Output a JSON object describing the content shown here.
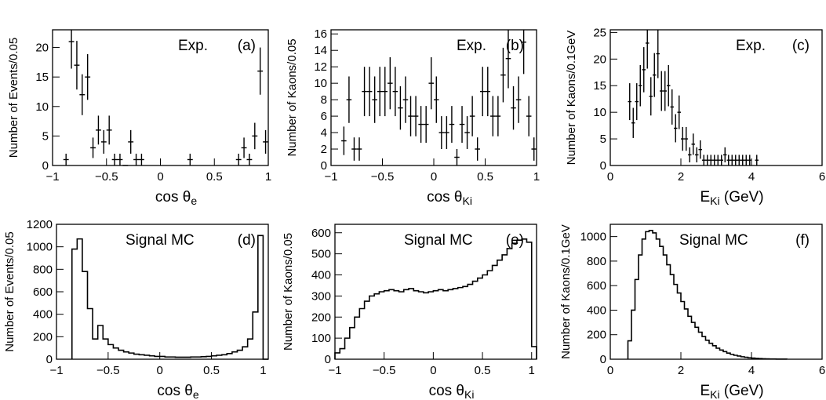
{
  "chart_data": [
    {
      "id": "a",
      "type": "scatter",
      "error_bars": true,
      "annotation": "Exp.",
      "panel_label": "(a)",
      "ylabel": "Number of Events/0.05",
      "xlabel_main": "cos θ",
      "xlabel_sub": "e",
      "xlim": [
        -1,
        1
      ],
      "ylim": [
        0,
        23
      ],
      "xticks": [
        -1,
        -0.5,
        0,
        0.5,
        1
      ],
      "xtick_labels": [
        "−1",
        "−0.5",
        "0",
        "0.5",
        "1"
      ],
      "yticks": [
        0,
        5,
        10,
        15,
        20
      ],
      "ytick_labels": [
        "0",
        "5",
        "10",
        "15",
        "20"
      ],
      "x": [
        -0.875,
        -0.825,
        -0.775,
        -0.725,
        -0.675,
        -0.625,
        -0.575,
        -0.525,
        -0.475,
        -0.425,
        -0.375,
        -0.325,
        -0.275,
        -0.225,
        -0.175,
        0.275,
        0.725,
        0.775,
        0.825,
        0.875,
        0.925,
        0.975
      ],
      "y": [
        1,
        21,
        17,
        12,
        15,
        3,
        6,
        4,
        6,
        1,
        1,
        0,
        4,
        1,
        1,
        1,
        1,
        3,
        1,
        5,
        16,
        4
      ]
    },
    {
      "id": "b",
      "type": "scatter",
      "error_bars": true,
      "annotation": "Exp.",
      "panel_label": "(b)",
      "ylabel": "Number of Kaons/0.05",
      "xlabel_main": "cos θ",
      "xlabel_sub": "Ki",
      "xlim": [
        -1,
        1
      ],
      "ylim": [
        0,
        16.5
      ],
      "xticks": [
        -1,
        -0.5,
        0,
        0.5,
        1
      ],
      "xtick_labels": [
        "−1",
        "−0.5",
        "0",
        "0.5",
        "1"
      ],
      "yticks": [
        0,
        2,
        4,
        6,
        8,
        10,
        12,
        14,
        16
      ],
      "ytick_labels": [
        "0",
        "2",
        "4",
        "6",
        "8",
        "10",
        "12",
        "14",
        "16"
      ],
      "x": [
        -0.875,
        -0.825,
        -0.775,
        -0.725,
        -0.675,
        -0.625,
        -0.575,
        -0.525,
        -0.475,
        -0.425,
        -0.375,
        -0.325,
        -0.275,
        -0.225,
        -0.175,
        -0.125,
        -0.075,
        -0.025,
        0.025,
        0.075,
        0.125,
        0.175,
        0.225,
        0.275,
        0.325,
        0.375,
        0.425,
        0.475,
        0.525,
        0.575,
        0.625,
        0.675,
        0.725,
        0.775,
        0.825,
        0.875,
        0.925,
        0.975
      ],
      "y": [
        3,
        8,
        2,
        2,
        9,
        9,
        8,
        9,
        9,
        10,
        9,
        7,
        8,
        6,
        6,
        5,
        5,
        10,
        8,
        4,
        4,
        5,
        1,
        5,
        4,
        6,
        2,
        9,
        9,
        6,
        6,
        11,
        13,
        7,
        8,
        15,
        6,
        2
      ]
    },
    {
      "id": "c",
      "type": "scatter",
      "error_bars": true,
      "annotation": "Exp.",
      "panel_label": "(c)",
      "ylabel": "Number of Kaons/0.1GeV",
      "xlabel_main": "E",
      "xlabel_sub": "Ki",
      "xlabel_tail": " (GeV)",
      "xlim": [
        0,
        6
      ],
      "ylim": [
        0,
        25.5
      ],
      "xticks": [
        0,
        2,
        4,
        6
      ],
      "xtick_labels": [
        "0",
        "2",
        "4",
        "6"
      ],
      "yticks": [
        0,
        5,
        10,
        15,
        20,
        25
      ],
      "ytick_labels": [
        "0",
        "5",
        "10",
        "15",
        "20",
        "25"
      ],
      "x": [
        0.55,
        0.65,
        0.75,
        0.85,
        0.95,
        1.05,
        1.15,
        1.25,
        1.35,
        1.45,
        1.55,
        1.65,
        1.75,
        1.85,
        1.95,
        2.05,
        2.15,
        2.25,
        2.35,
        2.45,
        2.55,
        2.65,
        2.75,
        2.85,
        2.95,
        3.05,
        3.15,
        3.25,
        3.35,
        3.45,
        3.55,
        3.65,
        3.75,
        3.85,
        3.95,
        4.15
      ],
      "y": [
        12,
        8,
        12,
        15,
        18,
        23,
        13,
        17,
        21,
        14,
        14,
        15,
        11,
        7,
        10,
        5,
        5,
        2,
        4,
        2,
        3,
        1,
        1,
        1,
        1,
        1,
        1,
        2,
        1,
        1,
        1,
        1,
        1,
        1,
        1,
        1
      ]
    },
    {
      "id": "d",
      "type": "histogram",
      "annotation": "Signal MC",
      "panel_label": "(d)",
      "ylabel": "Number of Events/0.05",
      "xlabel_main": "cos θ",
      "xlabel_sub": "e",
      "xlim": [
        -1,
        1.05
      ],
      "ylim": [
        0,
        1200
      ],
      "xticks": [
        -1,
        -0.5,
        0,
        0.5,
        1
      ],
      "xtick_labels": [
        "−1",
        "−0.5",
        "0",
        "0.5",
        "1"
      ],
      "yticks": [
        0,
        200,
        400,
        600,
        800,
        1000,
        1200
      ],
      "ytick_labels": [
        "0",
        "200",
        "400",
        "600",
        "800",
        "1000",
        "1200"
      ],
      "bin_edges": [
        -0.85,
        -0.8,
        -0.75,
        -0.7,
        -0.65,
        -0.6,
        -0.55,
        -0.5,
        -0.45,
        -0.4,
        -0.35,
        -0.3,
        -0.25,
        -0.2,
        -0.15,
        -0.1,
        -0.05,
        0,
        0.05,
        0.1,
        0.15,
        0.2,
        0.25,
        0.3,
        0.35,
        0.4,
        0.45,
        0.5,
        0.55,
        0.6,
        0.65,
        0.7,
        0.75,
        0.8,
        0.85,
        0.9,
        0.95,
        1.0,
        1.05
      ],
      "values": [
        980,
        1070,
        780,
        450,
        180,
        300,
        180,
        130,
        100,
        80,
        65,
        55,
        45,
        40,
        35,
        30,
        25,
        25,
        20,
        20,
        18,
        18,
        18,
        20,
        20,
        22,
        25,
        30,
        35,
        40,
        50,
        65,
        80,
        110,
        180,
        420,
        1100,
        0
      ]
    },
    {
      "id": "e",
      "type": "histogram",
      "annotation": "Signal MC",
      "panel_label": "(e)",
      "ylabel": "Number of Kaons/0.05",
      "xlabel_main": "cos θ",
      "xlabel_sub": "Ki",
      "xlim": [
        -1,
        1.05
      ],
      "ylim": [
        0,
        640
      ],
      "xticks": [
        -1,
        -0.5,
        0,
        0.5,
        1
      ],
      "xtick_labels": [
        "−1",
        "−0.5",
        "0",
        "0.5",
        "1"
      ],
      "yticks": [
        0,
        100,
        200,
        300,
        400,
        500,
        600
      ],
      "ytick_labels": [
        "0",
        "100",
        "200",
        "300",
        "400",
        "500",
        "600"
      ],
      "bin_edges": [
        -1,
        -0.95,
        -0.9,
        -0.85,
        -0.8,
        -0.75,
        -0.7,
        -0.65,
        -0.6,
        -0.55,
        -0.5,
        -0.45,
        -0.4,
        -0.35,
        -0.3,
        -0.25,
        -0.2,
        -0.15,
        -0.1,
        -0.05,
        0,
        0.05,
        0.1,
        0.15,
        0.2,
        0.25,
        0.3,
        0.35,
        0.4,
        0.45,
        0.5,
        0.55,
        0.6,
        0.65,
        0.7,
        0.75,
        0.8,
        0.85,
        0.9,
        0.95,
        1.0,
        1.05
      ],
      "values": [
        30,
        50,
        100,
        150,
        200,
        240,
        275,
        300,
        310,
        320,
        325,
        330,
        325,
        320,
        330,
        335,
        325,
        320,
        315,
        320,
        325,
        330,
        325,
        330,
        335,
        340,
        345,
        355,
        370,
        385,
        400,
        420,
        445,
        470,
        495,
        525,
        550,
        565,
        570,
        555,
        60
      ]
    },
    {
      "id": "f",
      "type": "histogram",
      "annotation": "Signal MC",
      "panel_label": "(f)",
      "ylabel": "Number of Kaons/0.1GeV",
      "xlabel_main": "E",
      "xlabel_sub": "Ki",
      "xlabel_tail": " (GeV)",
      "xlim": [
        0,
        6
      ],
      "ylim": [
        0,
        1100
      ],
      "xticks": [
        0,
        2,
        4,
        6
      ],
      "xtick_labels": [
        "0",
        "2",
        "4",
        "6"
      ],
      "yticks": [
        0,
        200,
        400,
        600,
        800,
        1000
      ],
      "ytick_labels": [
        "0",
        "200",
        "400",
        "600",
        "800",
        "1000"
      ],
      "bin_edges": [
        0.5,
        0.6,
        0.7,
        0.8,
        0.9,
        1.0,
        1.1,
        1.2,
        1.3,
        1.4,
        1.5,
        1.6,
        1.7,
        1.8,
        1.9,
        2.0,
        2.1,
        2.2,
        2.3,
        2.4,
        2.5,
        2.6,
        2.7,
        2.8,
        2.9,
        3.0,
        3.1,
        3.2,
        3.3,
        3.4,
        3.5,
        3.6,
        3.7,
        3.8,
        3.9,
        4.0,
        4.1,
        4.2,
        4.3,
        4.4,
        4.5,
        4.6,
        4.7,
        4.8,
        4.9,
        5.0
      ],
      "values": [
        150,
        400,
        650,
        850,
        980,
        1040,
        1050,
        1030,
        980,
        920,
        850,
        770,
        690,
        610,
        540,
        470,
        410,
        350,
        300,
        260,
        220,
        185,
        155,
        130,
        110,
        90,
        75,
        62,
        50,
        40,
        32,
        26,
        20,
        16,
        12,
        9,
        7,
        5,
        4,
        3,
        2,
        2,
        1,
        1,
        1
      ]
    }
  ]
}
